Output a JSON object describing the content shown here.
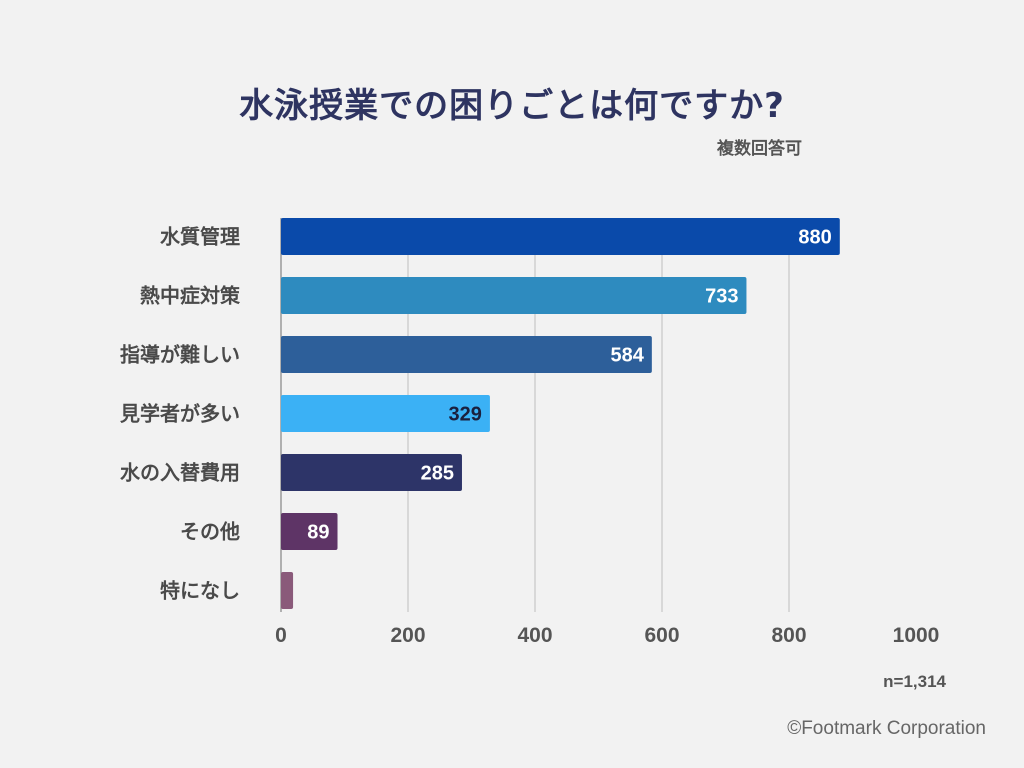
{
  "chart_data": {
    "type": "bar",
    "orientation": "horizontal",
    "title": "水泳授業での困りごとは何ですか?",
    "subtitle": "複数回答可",
    "categories": [
      "水質管理",
      "熱中症対策",
      "指導が難しい",
      "見学者が多い",
      "水の入替費用",
      "その他",
      "特になし"
    ],
    "values": [
      880,
      733,
      584,
      329,
      285,
      89,
      19
    ],
    "value_labels": [
      "880",
      "733",
      "584",
      "329",
      "285",
      "89",
      ""
    ],
    "colors": [
      "#0a4aaa",
      "#2e8bbf",
      "#2d5f9a",
      "#3bb1f5",
      "#2d3468",
      "#5e3466",
      "#8a5a7a"
    ],
    "label_colors": [
      "#ffffff",
      "#ffffff",
      "#ffffff",
      "#1a1f3d",
      "#ffffff",
      "#ffffff",
      "#ffffff"
    ],
    "xlim": [
      0,
      1000
    ],
    "xticks": [
      "0",
      "200",
      "400",
      "600",
      "800",
      "1000"
    ],
    "xtick_values": [
      0,
      200,
      400,
      600,
      800,
      1000
    ],
    "grid": true,
    "xlabel": "",
    "ylabel": "",
    "sample_note": "n=1,314"
  },
  "footer": {
    "credit": "©Footmark Corporation"
  }
}
